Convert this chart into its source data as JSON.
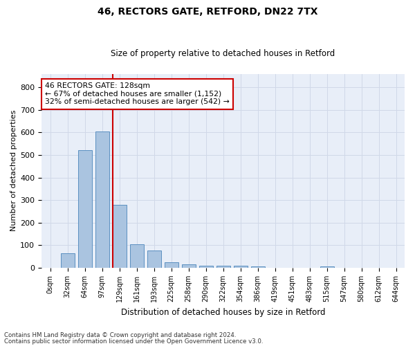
{
  "title1": "46, RECTORS GATE, RETFORD, DN22 7TX",
  "title2": "Size of property relative to detached houses in Retford",
  "xlabel": "Distribution of detached houses by size in Retford",
  "ylabel": "Number of detached properties",
  "footnote1": "Contains HM Land Registry data © Crown copyright and database right 2024.",
  "footnote2": "Contains public sector information licensed under the Open Government Licence v3.0.",
  "bar_labels": [
    "0sqm",
    "32sqm",
    "64sqm",
    "97sqm",
    "129sqm",
    "161sqm",
    "193sqm",
    "225sqm",
    "258sqm",
    "290sqm",
    "322sqm",
    "354sqm",
    "386sqm",
    "419sqm",
    "451sqm",
    "483sqm",
    "515sqm",
    "547sqm",
    "580sqm",
    "612sqm",
    "644sqm"
  ],
  "bar_values": [
    0,
    65,
    520,
    605,
    280,
    105,
    75,
    25,
    15,
    10,
    8,
    8,
    5,
    0,
    0,
    0,
    5,
    0,
    0,
    0,
    0
  ],
  "bar_color": "#aac4e0",
  "bar_edge_color": "#5a8fc0",
  "red_line_x": 3.6,
  "ylim": [
    0,
    860
  ],
  "yticks": [
    0,
    100,
    200,
    300,
    400,
    500,
    600,
    700,
    800
  ],
  "annotation_text": "46 RECTORS GATE: 128sqm\n← 67% of detached houses are smaller (1,152)\n32% of semi-detached houses are larger (542) →",
  "annotation_box_color": "#ffffff",
  "annotation_box_edge": "#cc0000",
  "grid_color": "#d0d8e8",
  "background_color": "#e8eef8"
}
